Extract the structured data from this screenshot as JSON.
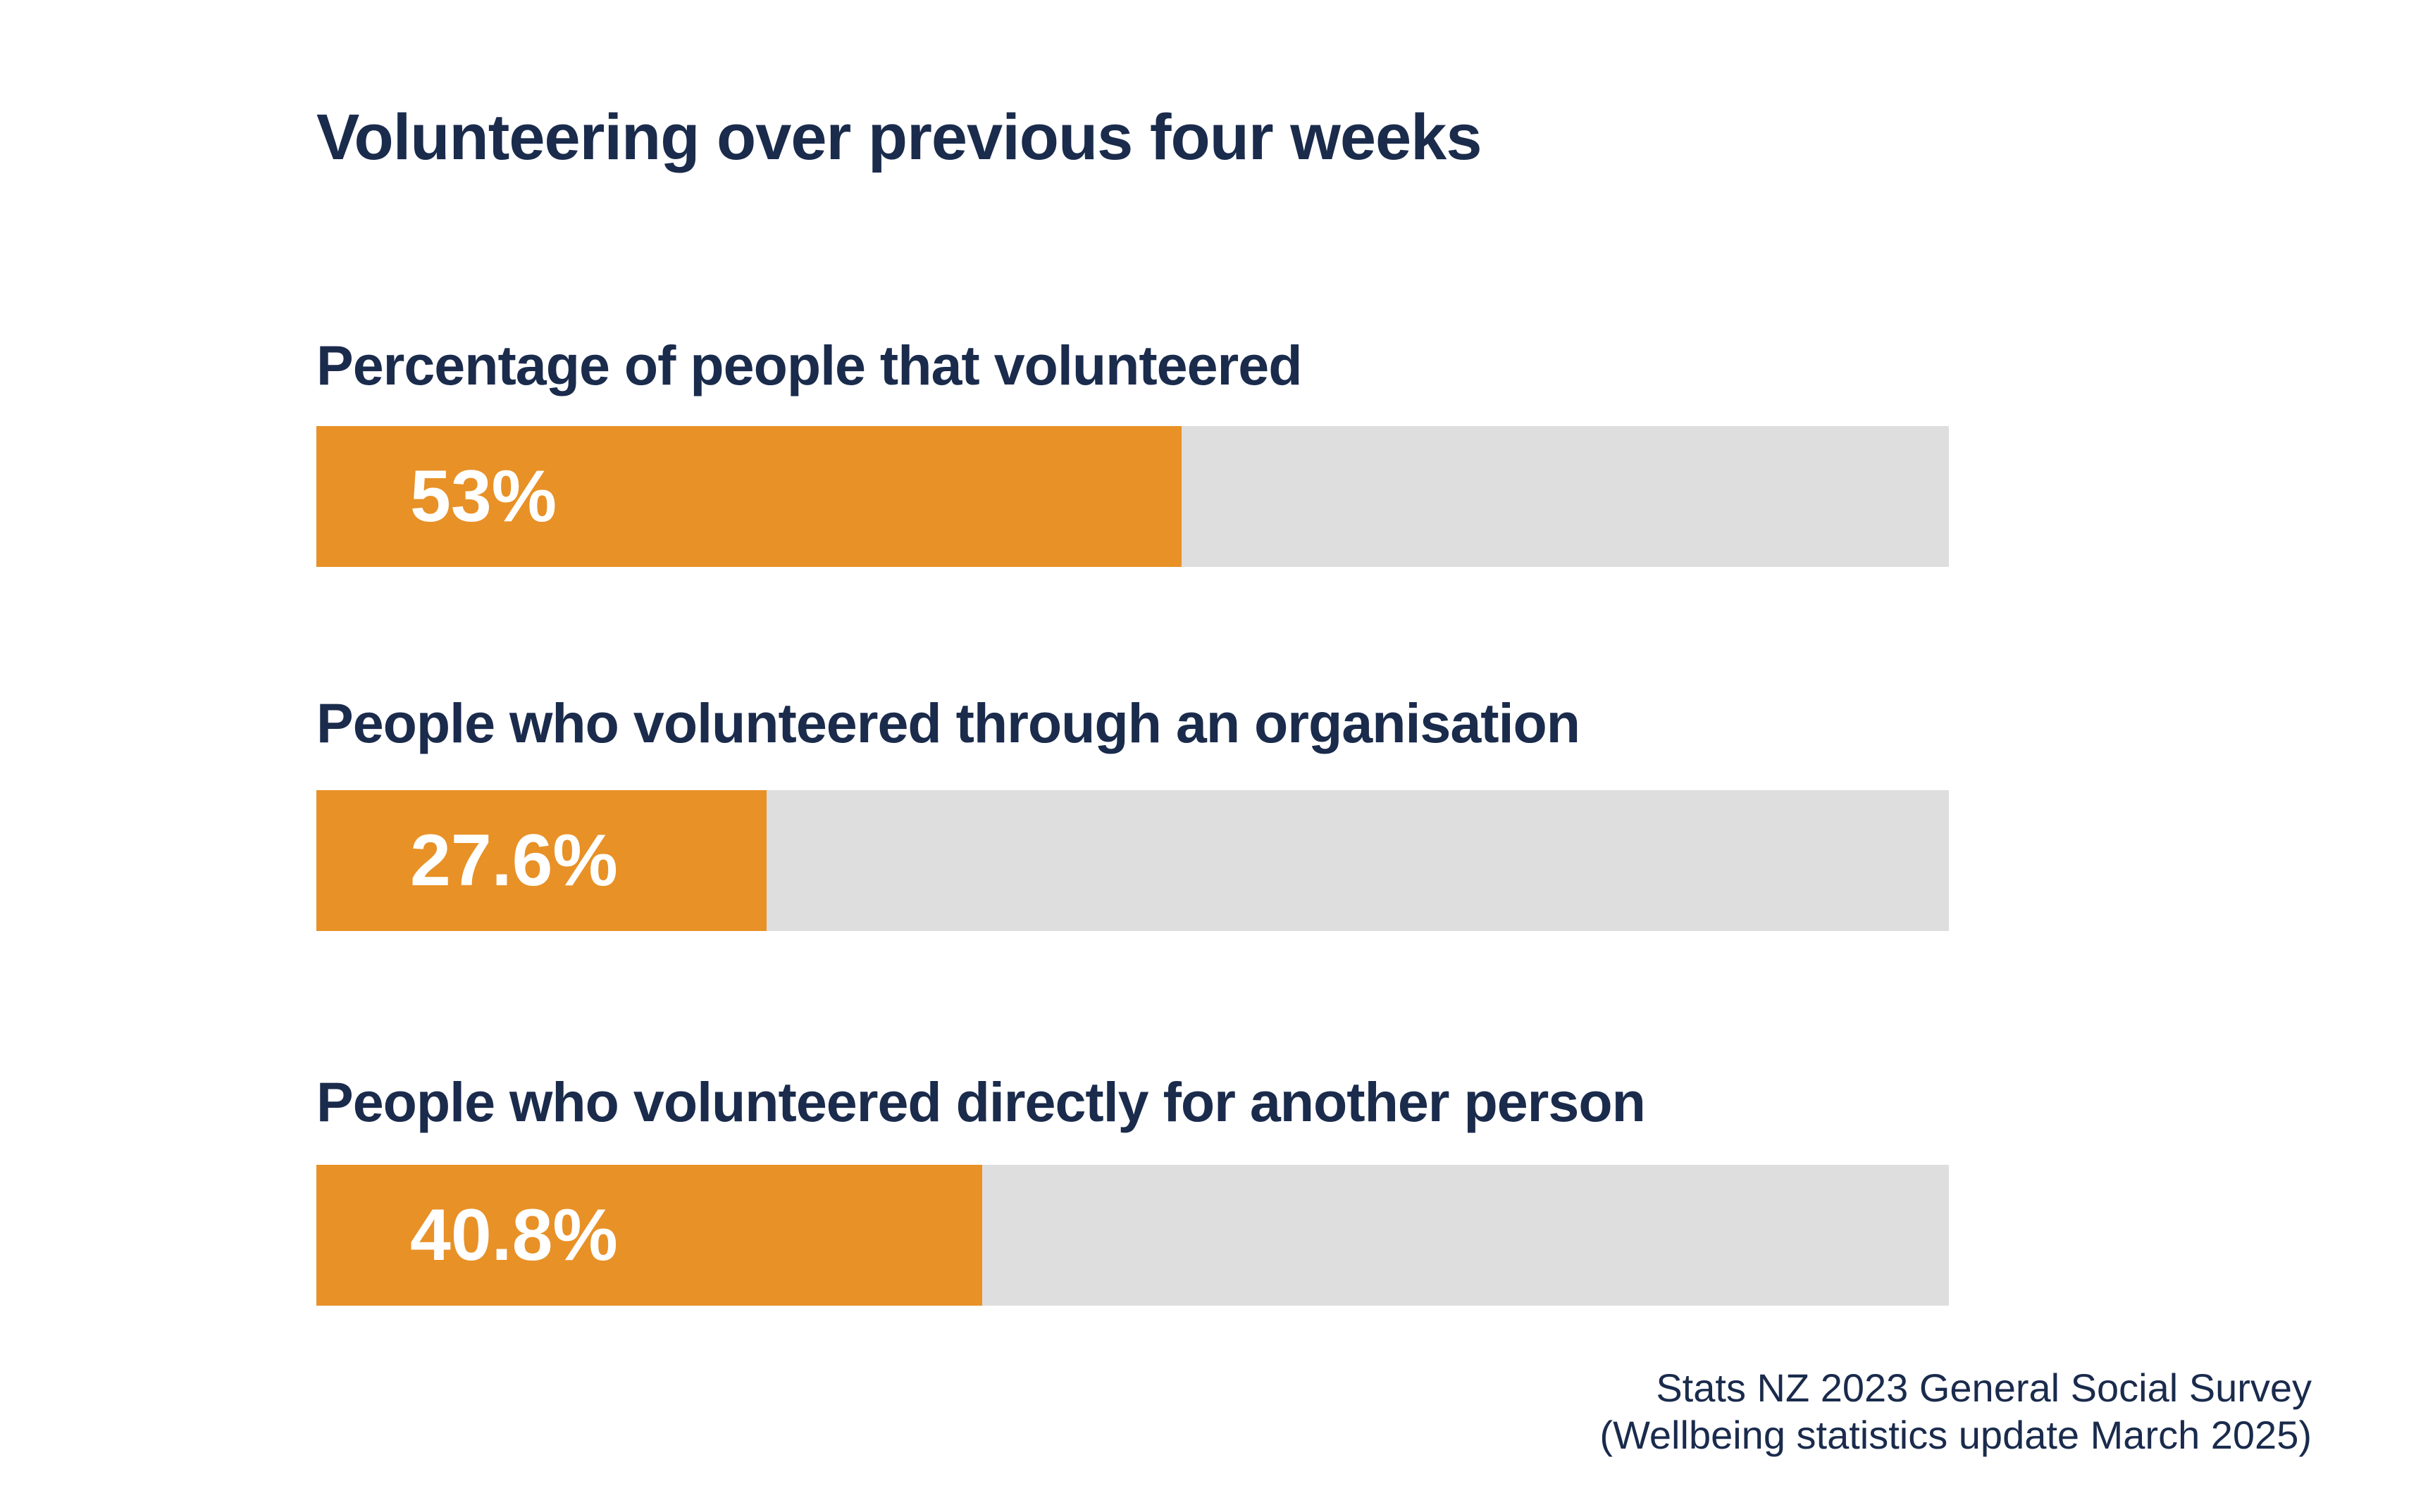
{
  "chart_data": {
    "type": "bar",
    "title": "Volunteering over previous four weeks",
    "categories": [
      "Percentage of people that volunteered",
      "People who volunteered through an organisation",
      "People who volunteered directly for another person"
    ],
    "values": [
      53,
      27.6,
      40.8
    ],
    "value_labels": [
      "53%",
      "27.6%",
      "40.8%"
    ],
    "ylim": [
      0,
      100
    ],
    "grid": false,
    "legend": "none"
  },
  "source": {
    "line1": "Stats NZ 2023 General Social Survey",
    "line2": "(Wellbeing statistics update March 2025)"
  },
  "colors": {
    "fill": "#E89127",
    "track": "#DEDEDE",
    "text": "#1A2B4C",
    "value_text": "#FFFFFF"
  }
}
